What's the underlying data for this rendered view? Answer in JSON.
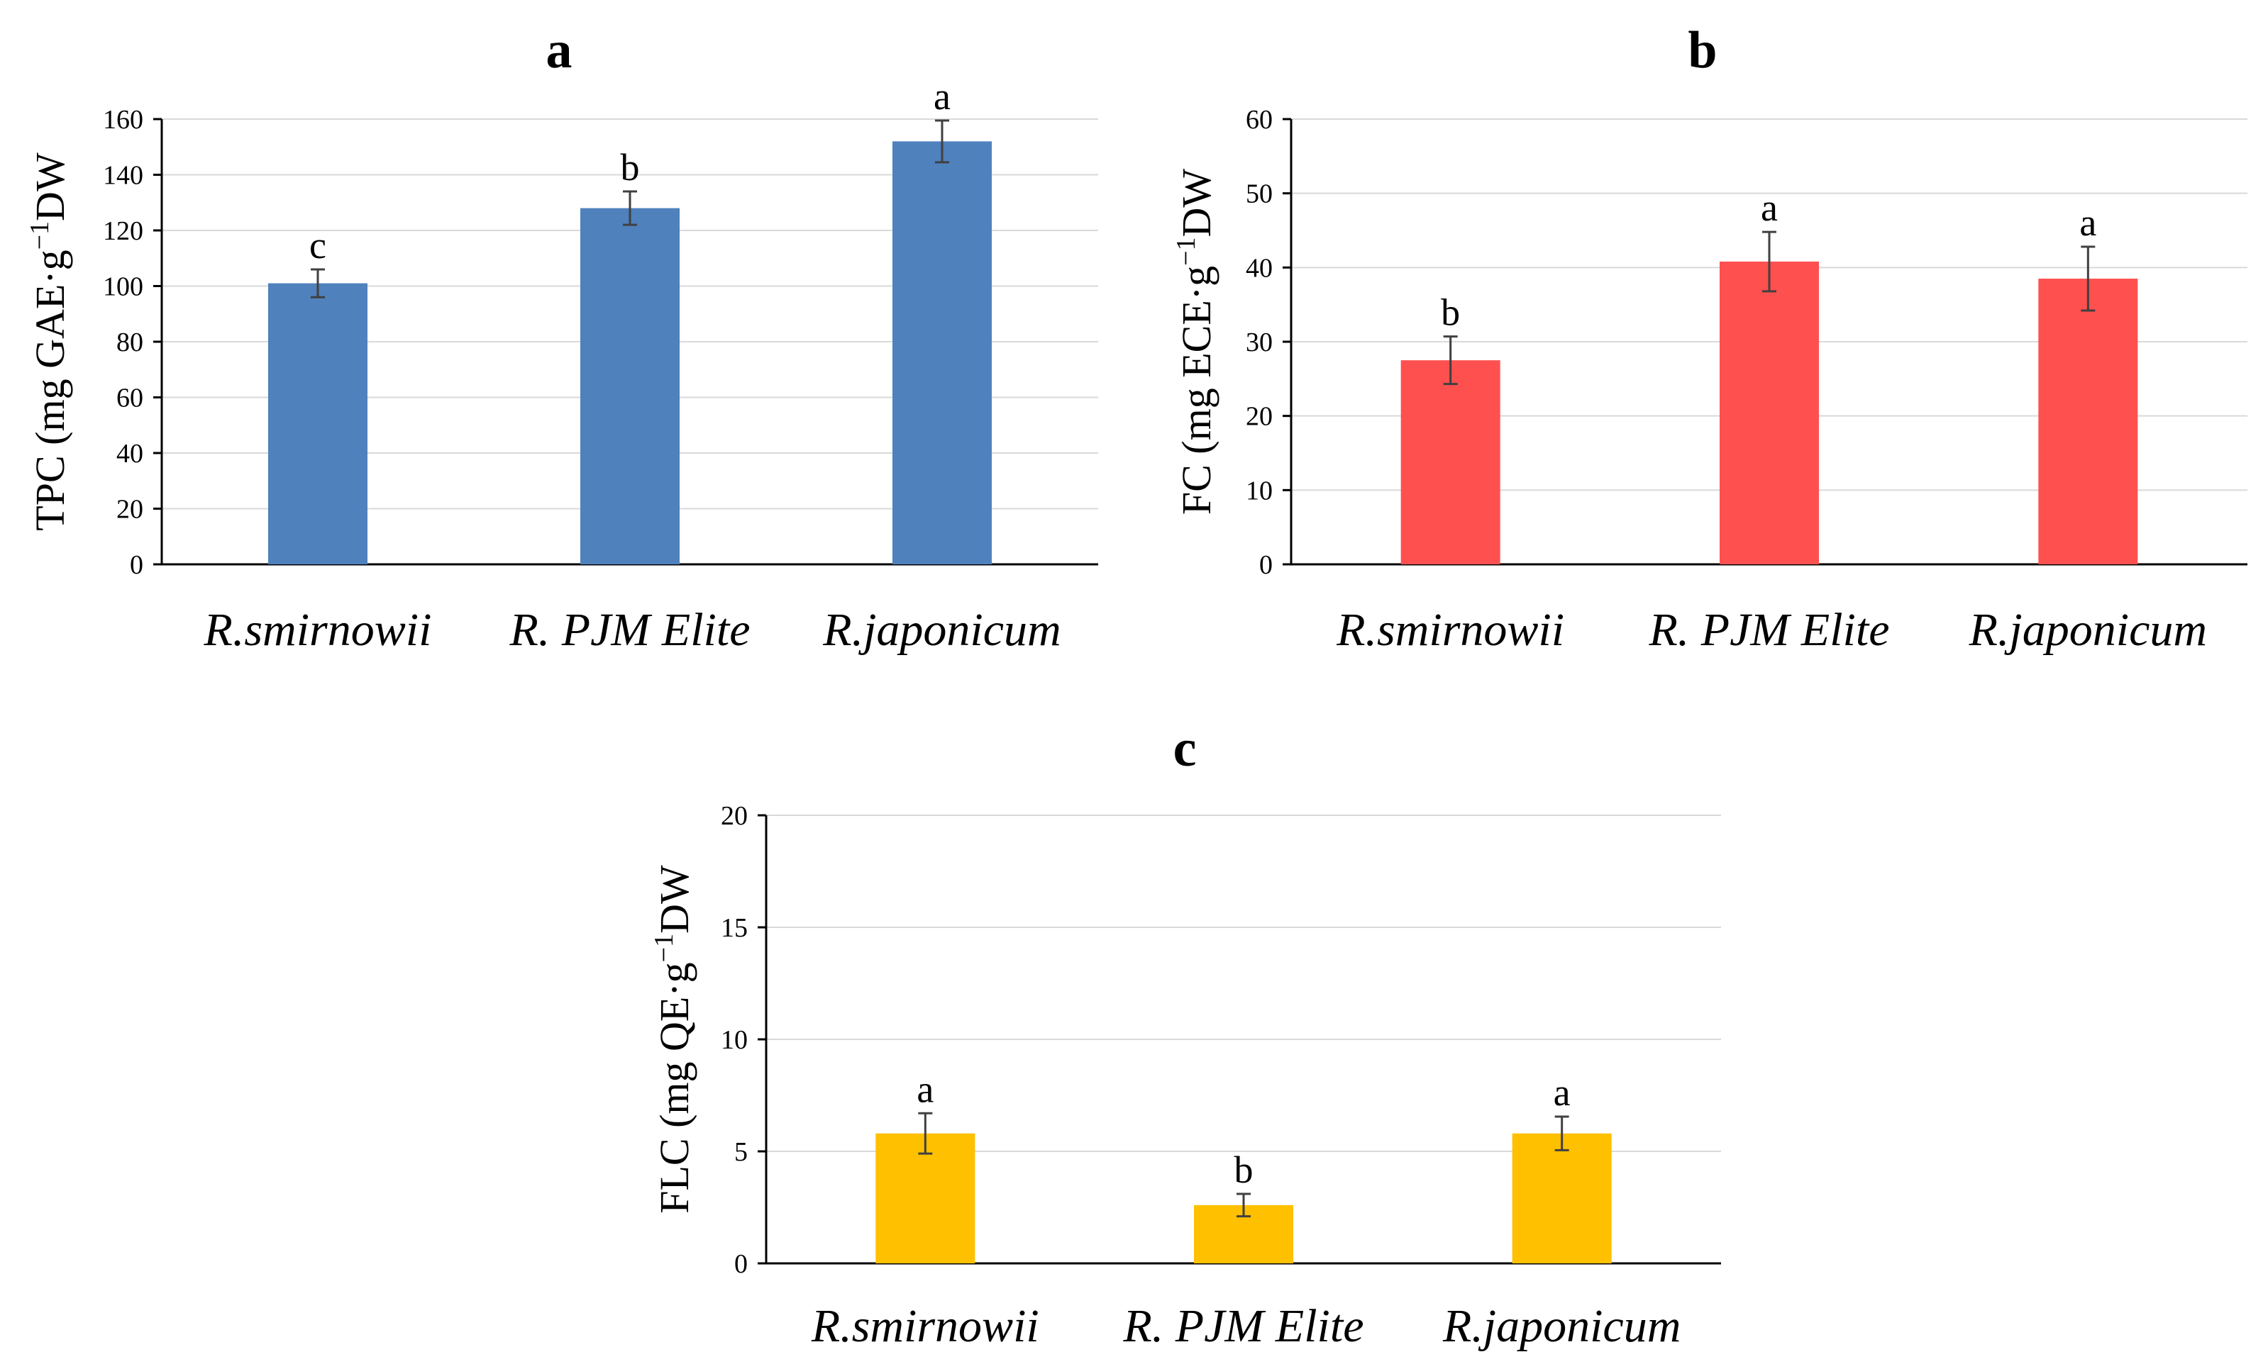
{
  "chart_data": [
    {
      "type": "bar",
      "panel": "a",
      "categories": [
        "R.smirnowii",
        "R. PJM Elite",
        "R.japonicum"
      ],
      "values": [
        101,
        128,
        152
      ],
      "errors": [
        5,
        6,
        7.5
      ],
      "significance": [
        "c",
        "b",
        "a"
      ],
      "ylabel": "TPC (mg GAE·g⁻¹DW",
      "ylim": [
        0,
        160
      ],
      "yticks": [
        0,
        20,
        40,
        60,
        80,
        100,
        120,
        140,
        160
      ],
      "color": "#4f81bd",
      "grid": true
    },
    {
      "type": "bar",
      "panel": "b",
      "categories": [
        "R.smirnowii",
        "R. PJM Elite",
        "R.japonicum"
      ],
      "values": [
        27.5,
        40.8,
        38.5
      ],
      "errors": [
        3.2,
        4,
        4.3
      ],
      "significance": [
        "b",
        "a",
        "a"
      ],
      "ylabel": "FC (mg ECE·g⁻¹DW",
      "ylim": [
        0,
        60
      ],
      "yticks": [
        0,
        10,
        20,
        30,
        40,
        50,
        60
      ],
      "color": "#ff5050",
      "grid": true
    },
    {
      "type": "bar",
      "panel": "c",
      "categories": [
        "R.smirnowii",
        "R. PJM Elite",
        "R.japonicum"
      ],
      "values": [
        5.8,
        2.6,
        5.8
      ],
      "errors": [
        0.9,
        0.5,
        0.75
      ],
      "significance": [
        "a",
        "b",
        "a"
      ],
      "ylabel": "FLC (mg QE·g⁻¹DW",
      "ylim": [
        0,
        20
      ],
      "yticks": [
        0,
        5,
        10,
        15,
        20
      ],
      "color": "#ffc000",
      "grid": true
    }
  ]
}
